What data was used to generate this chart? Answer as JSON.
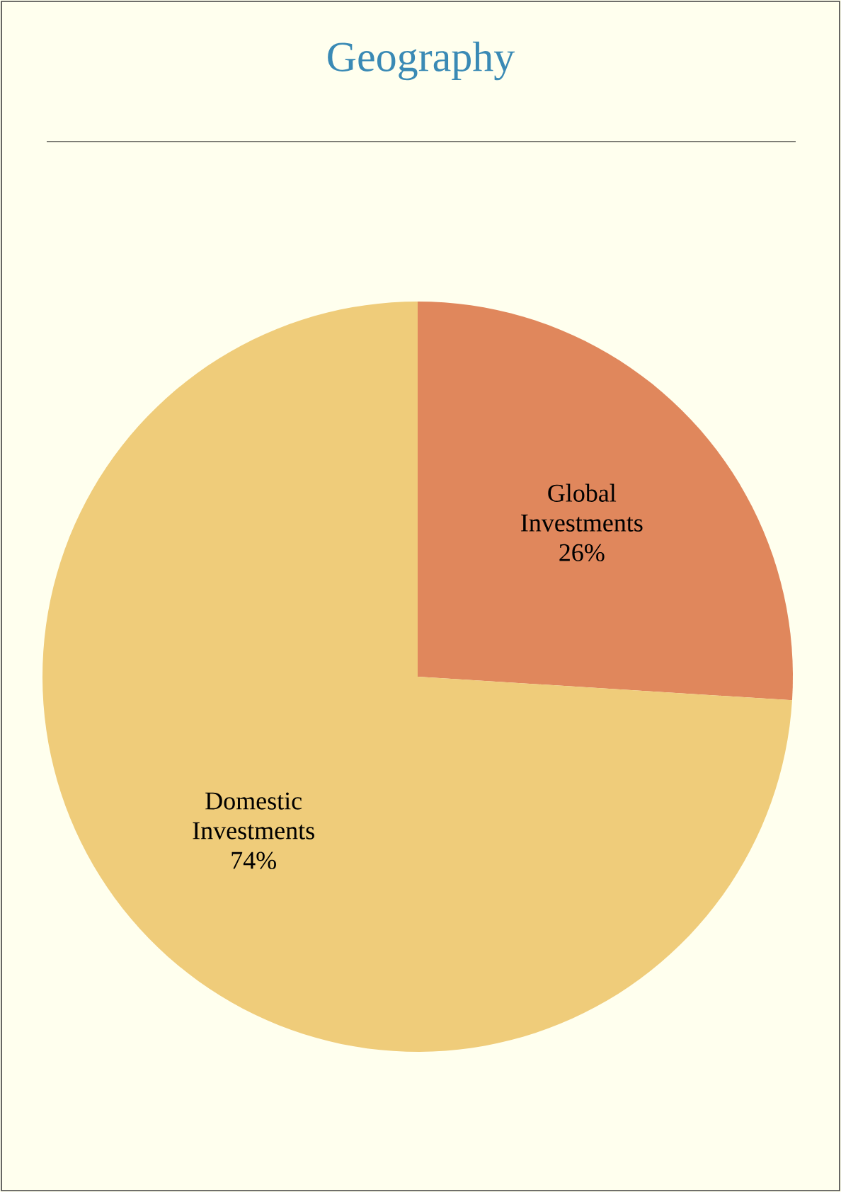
{
  "chart_data": {
    "type": "pie",
    "title": "Geography",
    "categories": [
      "Global Investments",
      "Domestic Investments"
    ],
    "values": [
      26,
      74
    ],
    "colors": [
      "#e0875c",
      "#efcc7a"
    ],
    "value_labels": [
      "26%",
      "74%"
    ]
  }
}
